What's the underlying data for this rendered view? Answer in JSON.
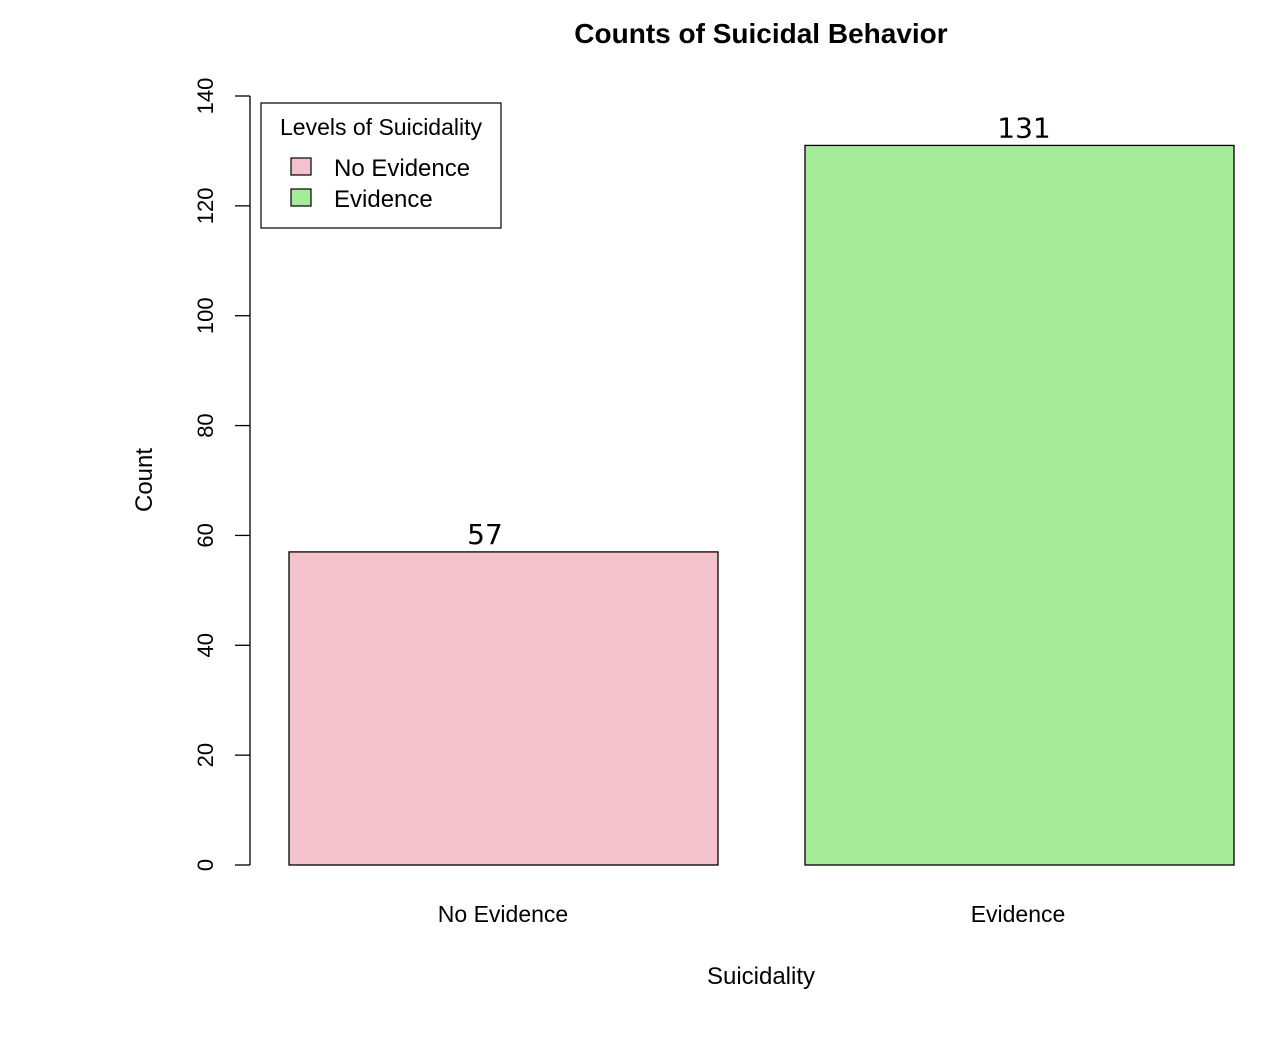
{
  "chart_data": {
    "type": "bar",
    "title": "Counts of Suicidal Behavior",
    "xlabel": "Suicidality",
    "ylabel": "Count",
    "categories": [
      "No Evidence",
      "Evidence"
    ],
    "values": [
      57,
      131
    ],
    "data_labels": [
      "57",
      "131"
    ],
    "colors": [
      "#f4c2cc",
      "#a6eb99"
    ],
    "ylim": [
      0,
      140
    ],
    "yticks": [
      0,
      20,
      40,
      60,
      80,
      100,
      120,
      140
    ],
    "grid": false,
    "legend": {
      "title": "Levels of Suicidality",
      "placement": "top-left",
      "entries": [
        "No Evidence",
        "Evidence"
      ]
    }
  }
}
